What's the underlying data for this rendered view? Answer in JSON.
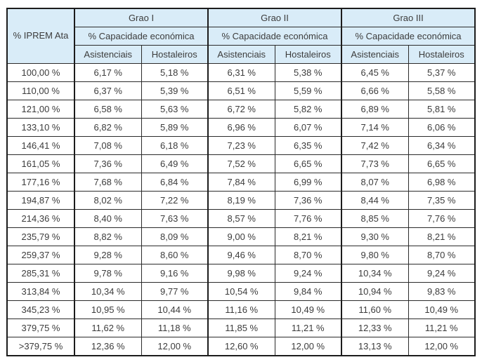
{
  "colors": {
    "header_bg": "#d9ecf8",
    "border": "#2b2b2b",
    "outer_border": "#1c1c1c",
    "text": "#3c3c3c",
    "row_bg": "#ffffff"
  },
  "table": {
    "corner_header": "% IPREM Ata",
    "groups": [
      {
        "label": "Grao I",
        "sublabel": "% Capacidade económica",
        "columns": [
          "Asistenciais",
          "Hostaleiros"
        ]
      },
      {
        "label": "Grao II",
        "sublabel": "% Capacidade económica",
        "columns": [
          "Asistenciais",
          "Hostaleiros"
        ]
      },
      {
        "label": "Grao III",
        "sublabel": "% Capacidade económica",
        "columns": [
          "Asistenciais",
          "Hostaleiros"
        ]
      }
    ],
    "rows": [
      {
        "iprem": "100,00 %",
        "values": [
          "6,17 %",
          "5,18 %",
          "6,31 %",
          "5,38 %",
          "6,45 %",
          "5,37 %"
        ]
      },
      {
        "iprem": "110,00 %",
        "values": [
          "6,37 %",
          "5,39 %",
          "6,51 %",
          "5,59 %",
          "6,66 %",
          "5,58 %"
        ]
      },
      {
        "iprem": "121,00 %",
        "values": [
          "6,58 %",
          "5,63 %",
          "6,72 %",
          "5,82 %",
          "6,89 %",
          "5,81 %"
        ]
      },
      {
        "iprem": "133,10 %",
        "values": [
          "6,82 %",
          "5,89 %",
          "6,96 %",
          "6,07 %",
          "7,14 %",
          "6,06 %"
        ]
      },
      {
        "iprem": "146,41 %",
        "values": [
          "7,08 %",
          "6,18 %",
          "7,23 %",
          "6,35 %",
          "7,42 %",
          "6,34 %"
        ]
      },
      {
        "iprem": "161,05 %",
        "values": [
          "7,36 %",
          "6,49 %",
          "7,52 %",
          "6,65 %",
          "7,73 %",
          "6,65 %"
        ]
      },
      {
        "iprem": "177,16 %",
        "values": [
          "7,68 %",
          "6,84 %",
          "7,84 %",
          "6,99 %",
          "8,07 %",
          "6,98 %"
        ]
      },
      {
        "iprem": "194,87 %",
        "values": [
          "8,02 %",
          "7,22 %",
          "8,19 %",
          "7,36 %",
          "8,44 %",
          "7,35 %"
        ]
      },
      {
        "iprem": "214,36 %",
        "values": [
          "8,40 %",
          "7,63 %",
          "8,57 %",
          "7,76 %",
          "8,85 %",
          "7,76 %"
        ]
      },
      {
        "iprem": "235,79 %",
        "values": [
          "8,82 %",
          "8,09 %",
          "9,00 %",
          "8,21 %",
          "9,30 %",
          "8,21 %"
        ]
      },
      {
        "iprem": "259,37 %",
        "values": [
          "9,28 %",
          "8,60 %",
          "9,46 %",
          "8,70 %",
          "9,80 %",
          "8,70 %"
        ]
      },
      {
        "iprem": "285,31 %",
        "values": [
          "9,78 %",
          "9,16 %",
          "9,98 %",
          "9,24 %",
          "10,34 %",
          "9,24 %"
        ]
      },
      {
        "iprem": "313,84 %",
        "values": [
          "10,34 %",
          "9,77 %",
          "10,54 %",
          "9,84 %",
          "10,94 %",
          "9,83 %"
        ]
      },
      {
        "iprem": "345,23 %",
        "values": [
          "10,95 %",
          "10,44 %",
          "11,16 %",
          "10,49 %",
          "11,60 %",
          "10,49 %"
        ]
      },
      {
        "iprem": "379,75 %",
        "values": [
          "11,62 %",
          "11,18 %",
          "11,85 %",
          "11,21 %",
          "12,33 %",
          "11,21 %"
        ]
      },
      {
        "iprem": ">379,75 %",
        "values": [
          "12,36 %",
          "12,00 %",
          "12,60 %",
          "12,00 %",
          "13,13 %",
          "12,00 %"
        ]
      }
    ]
  },
  "chart_data": {
    "type": "table",
    "title": "% Capacidade económica por Grao (Grao I, Grao II, Grao III) segundo % IPREM Ata",
    "columns": [
      "% IPREM Ata",
      "Grao I - Asistenciais",
      "Grao I - Hostaleiros",
      "Grao II - Asistenciais",
      "Grao II - Hostaleiros",
      "Grao III - Asistenciais",
      "Grao III - Hostaleiros"
    ],
    "rows": [
      [
        "100,00 %",
        6.17,
        5.18,
        6.31,
        5.38,
        6.45,
        5.37
      ],
      [
        "110,00 %",
        6.37,
        5.39,
        6.51,
        5.59,
        6.66,
        5.58
      ],
      [
        "121,00 %",
        6.58,
        5.63,
        6.72,
        5.82,
        6.89,
        5.81
      ],
      [
        "133,10 %",
        6.82,
        5.89,
        6.96,
        6.07,
        7.14,
        6.06
      ],
      [
        "146,41 %",
        7.08,
        6.18,
        7.23,
        6.35,
        7.42,
        6.34
      ],
      [
        "161,05 %",
        7.36,
        6.49,
        7.52,
        6.65,
        7.73,
        6.65
      ],
      [
        "177,16 %",
        7.68,
        6.84,
        7.84,
        6.99,
        8.07,
        6.98
      ],
      [
        "194,87 %",
        8.02,
        7.22,
        8.19,
        7.36,
        8.44,
        7.35
      ],
      [
        "214,36 %",
        8.4,
        7.63,
        8.57,
        7.76,
        8.85,
        7.76
      ],
      [
        "235,79 %",
        8.82,
        8.09,
        9.0,
        8.21,
        9.3,
        8.21
      ],
      [
        "259,37 %",
        9.28,
        8.6,
        9.46,
        8.7,
        9.8,
        8.7
      ],
      [
        "285,31 %",
        9.78,
        9.16,
        9.98,
        9.24,
        10.34,
        9.24
      ],
      [
        "313,84 %",
        10.34,
        9.77,
        10.54,
        9.84,
        10.94,
        9.83
      ],
      [
        "345,23 %",
        10.95,
        10.44,
        11.16,
        10.49,
        11.6,
        10.49
      ],
      [
        "379,75 %",
        11.62,
        11.18,
        11.85,
        11.21,
        12.33,
        11.21
      ],
      [
        ">379,75 %",
        12.36,
        12.0,
        12.6,
        12.0,
        13.13,
        12.0
      ]
    ]
  }
}
